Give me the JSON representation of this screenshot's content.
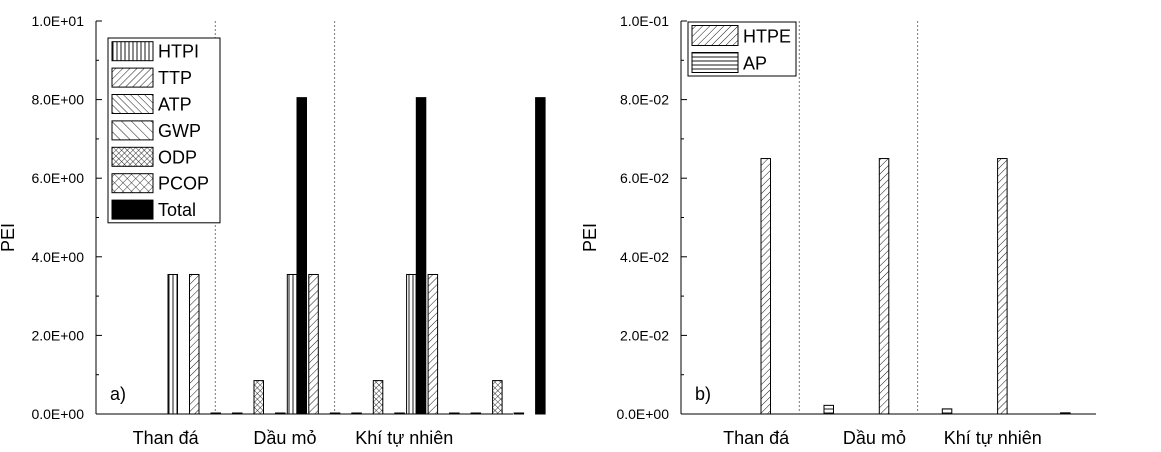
{
  "chart_data": [
    {
      "type": "bar",
      "panel_label": "a)",
      "ylabel": "PEI",
      "xlabel": "",
      "categories": [
        "Than đá",
        "Dầu mỏ",
        "Khí tự nhiên"
      ],
      "ylim": [
        0,
        10
      ],
      "y_ticks": [
        0,
        2,
        4,
        6,
        8,
        10
      ],
      "y_tick_labels": [
        "0.0E+00",
        "2.0E+00",
        "4.0E+00",
        "6.0E+00",
        "8.0E+00",
        "1.0E+01"
      ],
      "legend_position": "top-left",
      "group_separators": "dashed",
      "series": [
        {
          "name": "HTPI",
          "values": [
            3.55,
            3.55,
            3.55
          ],
          "pattern": "vertical"
        },
        {
          "name": "TTP",
          "values": [
            3.55,
            3.55,
            3.55
          ],
          "pattern": "diag-up"
        },
        {
          "name": "ATP",
          "values": [
            0.01,
            0.01,
            0.01
          ],
          "pattern": "diag-down"
        },
        {
          "name": "GWP",
          "values": [
            0.0,
            0.0,
            0.0
          ],
          "pattern": "diag-down-sparse"
        },
        {
          "name": "ODP",
          "values": [
            0.85,
            0.85,
            0.85
          ],
          "pattern": "crosshatch"
        },
        {
          "name": "PCOP",
          "values": [
            0.0,
            0.0,
            0.0
          ],
          "pattern": "crosshatch-sparse"
        },
        {
          "name": "Total",
          "values": [
            8.05,
            8.05,
            8.05
          ],
          "pattern": "solid"
        }
      ]
    },
    {
      "type": "bar",
      "panel_label": "b)",
      "ylabel": "PEI",
      "xlabel": "",
      "categories": [
        "Than đá",
        "Dầu mỏ",
        "Khí tự nhiên"
      ],
      "ylim": [
        0,
        0.1
      ],
      "y_ticks": [
        0,
        0.02,
        0.04,
        0.06,
        0.08,
        0.1
      ],
      "y_tick_labels": [
        "0.0E+00",
        "2.0E-02",
        "4.0E-02",
        "6.0E-02",
        "8.0E-02",
        "1.0E-01"
      ],
      "legend_position": "top-left",
      "group_separators": "dashed",
      "series": [
        {
          "name": "HTPE",
          "values": [
            0.065,
            0.065,
            0.065
          ],
          "pattern": "diag-up"
        },
        {
          "name": "AP",
          "values": [
            0.0022,
            0.0013,
            0.0003
          ],
          "pattern": "horizontal"
        }
      ]
    }
  ]
}
